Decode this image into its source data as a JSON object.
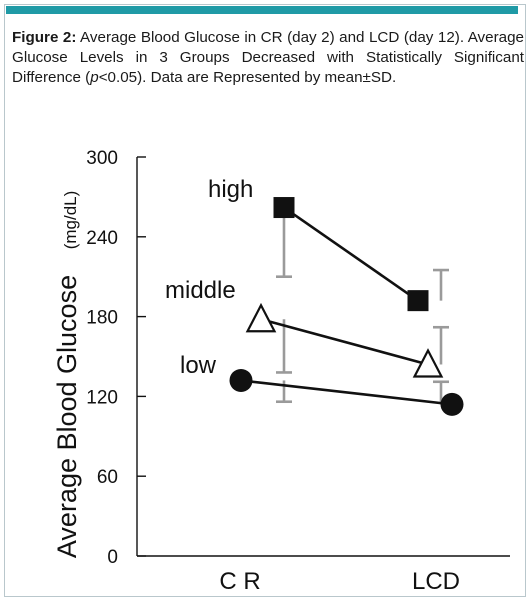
{
  "caption": {
    "label": "Figure 2:",
    "text_a": " Average Blood Glucose in CR (day 2) and LCD (day 12). Average Glucose Levels in 3 Groups Decreased with Statistically Significant Difference (",
    "p": "p",
    "text_b": "<0.05). Data are Represented by mean±SD."
  },
  "chart_data": {
    "type": "line",
    "categories": [
      "C R",
      "LCD"
    ],
    "ylabel": "Average Blood Glucose",
    "yunit": "(mg/dL)",
    "ylim": [
      0,
      300
    ],
    "yticks": [
      0,
      60,
      120,
      180,
      240,
      300
    ],
    "series": [
      {
        "name": "high",
        "marker": "square",
        "values": [
          262,
          192
        ],
        "sd_low": [
          210,
          null
        ],
        "sd_high": [
          null,
          215
        ]
      },
      {
        "name": "middle",
        "marker": "triangle",
        "values": [
          178,
          144
        ],
        "sd_low": [
          138,
          null
        ],
        "sd_high": [
          null,
          172
        ]
      },
      {
        "name": "low",
        "marker": "circle",
        "values": [
          132,
          114
        ],
        "sd_low": [
          116,
          null
        ],
        "sd_high": [
          null,
          131
        ]
      }
    ]
  }
}
